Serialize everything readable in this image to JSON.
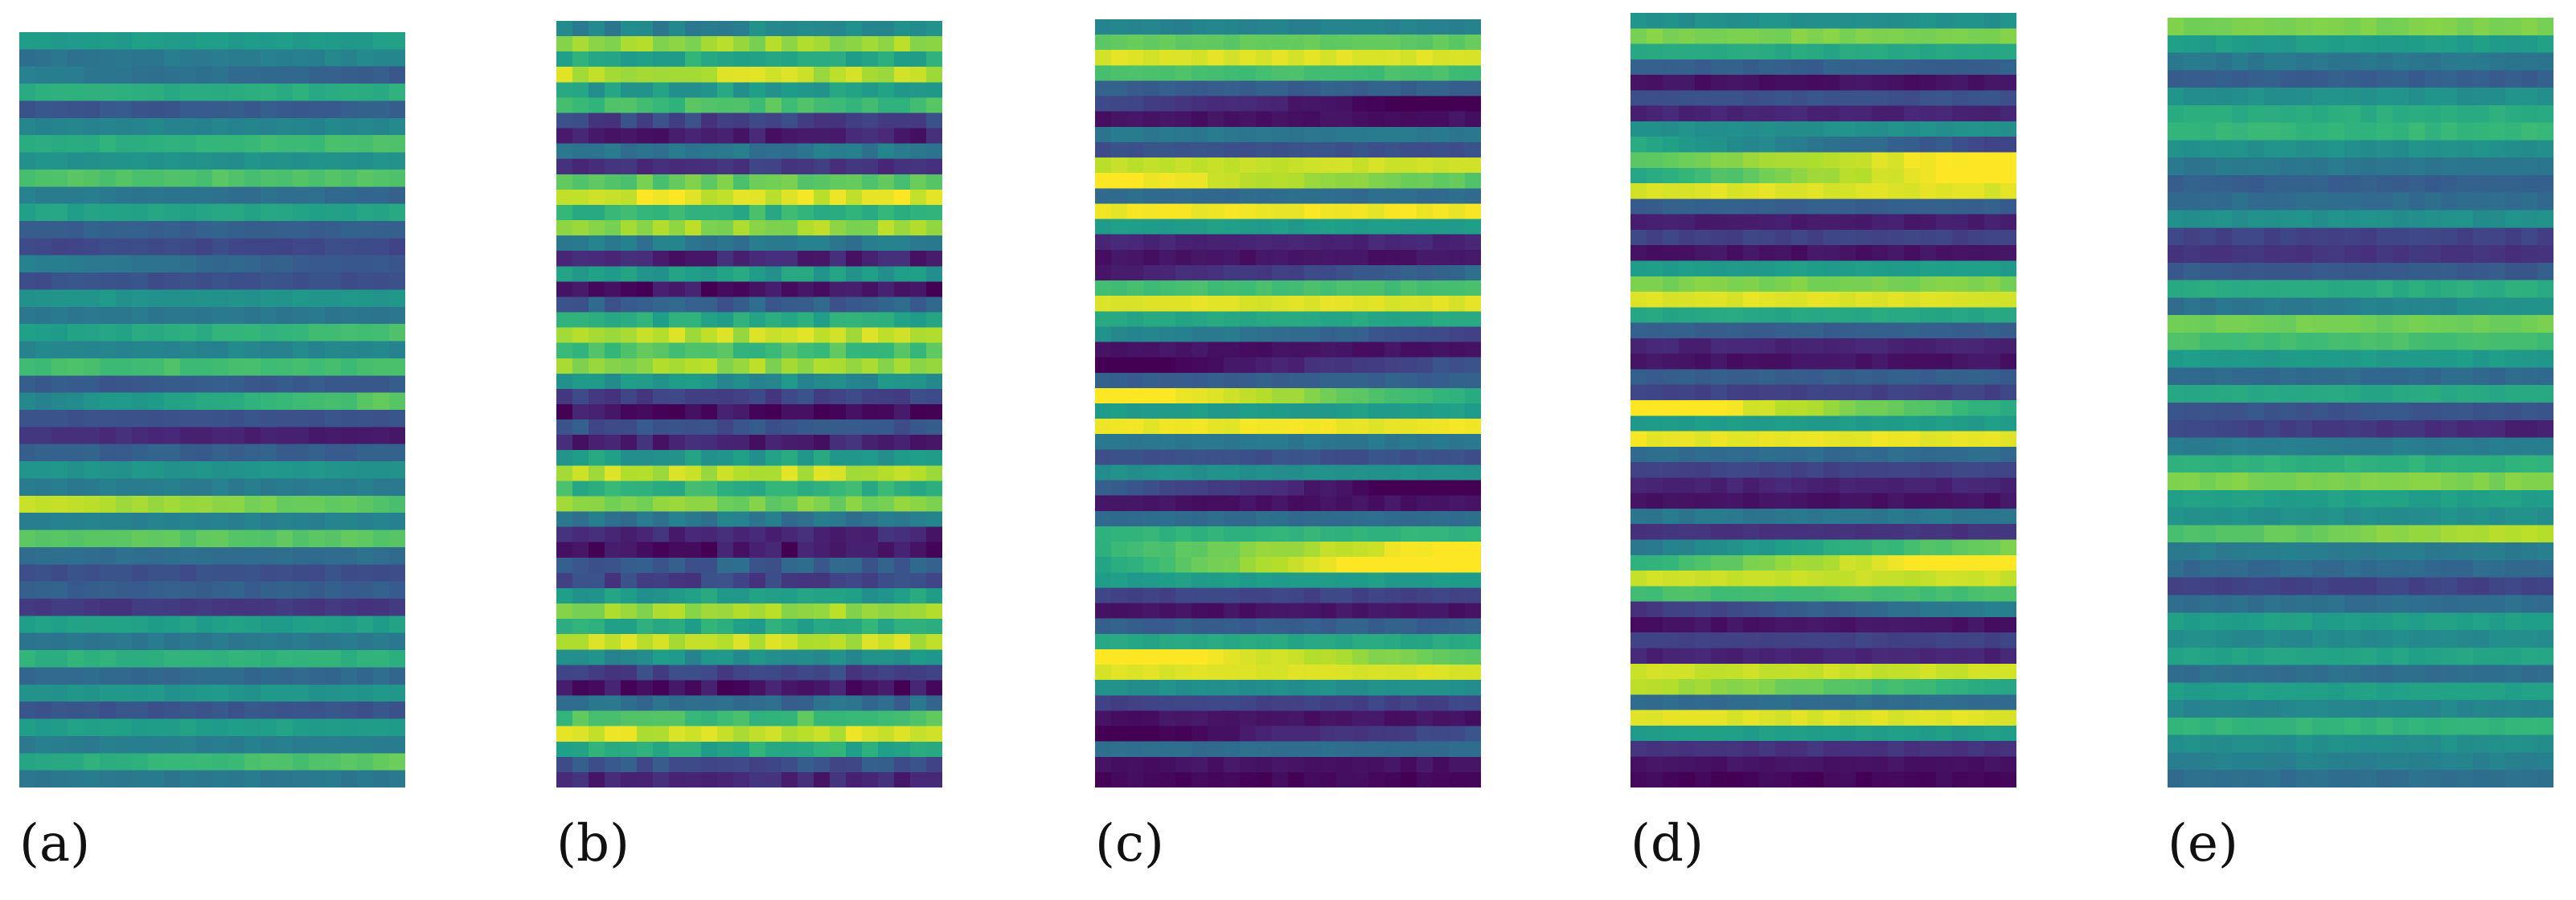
{
  "chart_data": [
    {
      "type": "heatmap",
      "label": "(a)",
      "colormap": "viridis",
      "rows": 44,
      "cols": 24,
      "row_profile": [
        0.55,
        0.42,
        0.36,
        0.62,
        0.28,
        0.46,
        0.66,
        0.5,
        0.72,
        0.38,
        0.58,
        0.3,
        0.22,
        0.35,
        0.25,
        0.52,
        0.4,
        0.63,
        0.46,
        0.7,
        0.28,
        0.6,
        0.26,
        0.1,
        0.3,
        0.52,
        0.42,
        0.82,
        0.44,
        0.74,
        0.36,
        0.24,
        0.3,
        0.16,
        0.56,
        0.4,
        0.64,
        0.34,
        0.52,
        0.26,
        0.56,
        0.42,
        0.68,
        0.4
      ],
      "trend": [
        0,
        0.1,
        -0.15,
        0,
        0.05,
        0,
        0.1,
        0,
        0,
        -0.1,
        0,
        0,
        0,
        -0.2,
        0,
        0,
        0,
        0.15,
        0,
        0,
        0,
        0.3,
        0,
        -0.1,
        0,
        0,
        0,
        -0.2,
        0,
        0,
        0,
        0,
        0,
        0,
        0,
        0,
        0,
        0,
        0,
        0,
        0,
        0,
        0.15,
        0
      ]
    },
    {
      "type": "heatmap",
      "label": "(b)",
      "colormap": "viridis",
      "rows": 50,
      "cols": 24,
      "row_profile": [
        0.45,
        0.85,
        0.6,
        0.9,
        0.55,
        0.7,
        0.2,
        0.08,
        0.4,
        0.15,
        0.75,
        0.95,
        0.65,
        0.85,
        0.4,
        0.1,
        0.55,
        0.05,
        0.3,
        0.6,
        0.9,
        0.7,
        0.85,
        0.5,
        0.2,
        0.05,
        0.25,
        0.1,
        0.55,
        0.9,
        0.65,
        0.8,
        0.4,
        0.1,
        0.05,
        0.3,
        0.2,
        0.55,
        0.85,
        0.6,
        0.9,
        0.5,
        0.2,
        0.05,
        0.35,
        0.7,
        0.92,
        0.6,
        0.25,
        0.1
      ],
      "trend": [
        0,
        0,
        0,
        0,
        0,
        0,
        0,
        0,
        0,
        0,
        0,
        0,
        0,
        0,
        0,
        0,
        0,
        0,
        0,
        0,
        0,
        0,
        0,
        0,
        0,
        0,
        0,
        0,
        0,
        0,
        0,
        0,
        0,
        0,
        0,
        0,
        0,
        0,
        0,
        0,
        0,
        0,
        0,
        0,
        0,
        0,
        0,
        0,
        0,
        0
      ],
      "noise": 0.12
    },
    {
      "type": "heatmap",
      "label": "(c)",
      "colormap": "viridis",
      "rows": 50,
      "cols": 24,
      "row_profile": [
        0.45,
        0.75,
        0.95,
        0.7,
        0.3,
        0.08,
        0.05,
        0.4,
        0.25,
        0.92,
        0.88,
        0.35,
        0.98,
        0.55,
        0.1,
        0.05,
        0.2,
        0.7,
        0.95,
        0.6,
        0.35,
        0.05,
        0.1,
        0.3,
        0.85,
        0.55,
        0.97,
        0.4,
        0.25,
        0.5,
        0.1,
        0.05,
        0.35,
        0.65,
        0.85,
        0.9,
        0.55,
        0.2,
        0.05,
        0.3,
        0.6,
        0.92,
        0.95,
        0.5,
        0.2,
        0.05,
        0.1,
        0.35,
        0.05,
        0.02
      ],
      "trend": [
        0,
        0,
        0,
        0,
        0,
        -0.3,
        0,
        0,
        0,
        0.05,
        -0.3,
        0,
        0,
        0,
        0,
        0,
        0.3,
        0,
        0,
        0,
        -0.3,
        0,
        0.35,
        0,
        -0.5,
        0,
        0,
        0,
        0,
        0,
        -0.4,
        0,
        0,
        0,
        0.4,
        0.6,
        0,
        0,
        0,
        0,
        0,
        -0.4,
        0,
        0,
        0,
        0,
        0.3,
        0,
        0,
        0
      ]
    },
    {
      "type": "heatmap",
      "label": "(d)",
      "colormap": "viridis",
      "rows": 50,
      "cols": 24,
      "row_profile": [
        0.5,
        0.8,
        0.6,
        0.3,
        0.05,
        0.25,
        0.1,
        0.5,
        0.4,
        0.9,
        0.85,
        0.95,
        0.3,
        0.08,
        0.2,
        0.05,
        0.55,
        0.8,
        0.95,
        0.6,
        0.3,
        0.1,
        0.05,
        0.3,
        0.2,
        0.85,
        0.55,
        0.97,
        0.35,
        0.2,
        0.1,
        0.05,
        0.4,
        0.15,
        0.6,
        0.88,
        0.92,
        0.7,
        0.3,
        0.05,
        0.2,
        0.1,
        0.92,
        0.75,
        0.35,
        0.95,
        0.55,
        0.15,
        0.05,
        0.02
      ],
      "trend": [
        0,
        0,
        0,
        0,
        0,
        0,
        0,
        0,
        -0.4,
        0.3,
        0.5,
        0,
        0,
        0,
        0,
        0,
        0,
        0,
        0,
        0,
        0,
        0,
        0,
        0,
        0,
        -0.5,
        0,
        0,
        0,
        0,
        0,
        0,
        0,
        0,
        0.4,
        0.5,
        0,
        0,
        0.3,
        0,
        0,
        0,
        0,
        -0.3,
        0,
        0,
        0,
        0,
        0,
        0
      ]
    },
    {
      "type": "heatmap",
      "label": "(e)",
      "colormap": "viridis",
      "rows": 44,
      "cols": 24,
      "row_profile": [
        0.8,
        0.55,
        0.4,
        0.3,
        0.5,
        0.62,
        0.66,
        0.5,
        0.4,
        0.3,
        0.35,
        0.5,
        0.2,
        0.15,
        0.28,
        0.62,
        0.44,
        0.78,
        0.7,
        0.54,
        0.34,
        0.6,
        0.26,
        0.16,
        0.42,
        0.64,
        0.8,
        0.56,
        0.5,
        0.8,
        0.42,
        0.34,
        0.2,
        0.36,
        0.56,
        0.48,
        0.58,
        0.36,
        0.56,
        0.46,
        0.66,
        0.5,
        0.44,
        0.36
      ],
      "trend": [
        0,
        0,
        0,
        0,
        0,
        0,
        0,
        0,
        0,
        0,
        0,
        0,
        0,
        0,
        0,
        0,
        0.15,
        0,
        0,
        0,
        0,
        0,
        0,
        -0.15,
        0,
        0,
        0,
        0,
        0,
        0.2,
        0,
        0,
        0,
        0,
        0,
        0,
        0,
        0,
        0,
        0,
        0,
        0,
        0,
        0
      ]
    }
  ]
}
